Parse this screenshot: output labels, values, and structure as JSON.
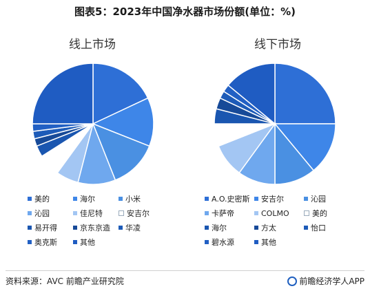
{
  "page": {
    "title": "图表5：2023年中国净水器市场份额(单位：%)",
    "source": "资料来源：AVC 前瞻产业研究院",
    "brand": "前瞻经济学人APP"
  },
  "chart_data": [
    {
      "type": "pie",
      "title": "线上市场",
      "legend_columns": 3,
      "series": [
        {
          "name": "美的",
          "value": 18,
          "color": "#2e6fd6"
        },
        {
          "name": "海尔",
          "value": 13,
          "color": "#3e86e8"
        },
        {
          "name": "小米",
          "value": 13,
          "color": "#4a90e2"
        },
        {
          "name": "沁园",
          "value": 10,
          "color": "#6fa8ee"
        },
        {
          "name": "佳尼特",
          "value": 6,
          "color": "#a3c6f3"
        },
        {
          "name": "安吉尔",
          "value": 6,
          "color": "#ffffff"
        },
        {
          "name": "易开得",
          "value": 3,
          "color": "#1a56b0"
        },
        {
          "name": "京东京造",
          "value": 2,
          "color": "#174a98"
        },
        {
          "name": "华凌",
          "value": 2,
          "color": "#1d5bb8"
        },
        {
          "name": "奥克斯",
          "value": 2,
          "color": "#2260c4"
        },
        {
          "name": "其他",
          "value": 25,
          "color": "#1f5cc2"
        }
      ]
    },
    {
      "type": "pie",
      "title": "线下市场",
      "legend_columns": 3,
      "series": [
        {
          "name": "A.O.史密斯",
          "value": 25,
          "color": "#2e6fd6"
        },
        {
          "name": "安吉尔",
          "value": 14,
          "color": "#3e86e8"
        },
        {
          "name": "沁园",
          "value": 11,
          "color": "#4a90e2"
        },
        {
          "name": "卡萨帝",
          "value": 10,
          "color": "#6fa8ee"
        },
        {
          "name": "COLMO",
          "value": 9,
          "color": "#a3c6f3"
        },
        {
          "name": "美的",
          "value": 6,
          "color": "#ffffff"
        },
        {
          "name": "海尔",
          "value": 4,
          "color": "#1a56b0"
        },
        {
          "name": "方太",
          "value": 3,
          "color": "#174a98"
        },
        {
          "name": "怡口",
          "value": 2,
          "color": "#1d5bb8"
        },
        {
          "name": "碧水源",
          "value": 2,
          "color": "#2260c4"
        },
        {
          "name": "其他",
          "value": 14,
          "color": "#1f5cc2"
        }
      ]
    }
  ]
}
